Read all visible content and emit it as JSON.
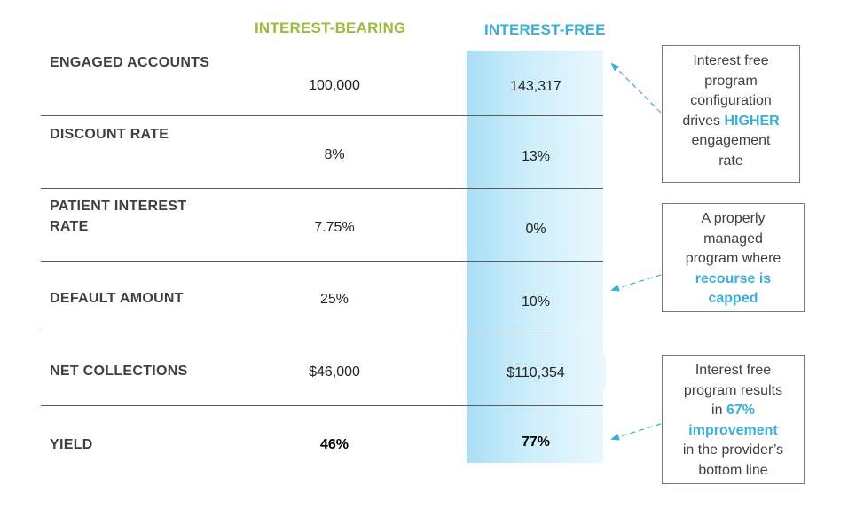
{
  "headers": {
    "interest_bearing": "INTEREST-BEARING",
    "interest_free": "INTEREST-FREE"
  },
  "rows": [
    {
      "label_l1": "ENGAGED ACCOUNTS",
      "label_l2": "",
      "interest_bearing": "100,000",
      "interest_free": "143,317"
    },
    {
      "label_l1": "DISCOUNT RATE",
      "label_l2": "",
      "interest_bearing": "8%",
      "interest_free": "13%"
    },
    {
      "label_l1": "PATIENT INTEREST",
      "label_l2": "RATE",
      "interest_bearing": "7.75%",
      "interest_free": "0%"
    },
    {
      "label_l1": "DEFAULT AMOUNT",
      "label_l2": "",
      "interest_bearing": "25%",
      "interest_free": "10%"
    },
    {
      "label_l1": "NET COLLECTIONS",
      "label_l2": "",
      "interest_bearing": "$46,000",
      "interest_free": "$110,354"
    },
    {
      "label_l1": "YIELD",
      "label_l2": "",
      "interest_bearing": "46%",
      "interest_free": "77%"
    }
  ],
  "notes": {
    "n1": {
      "l1": "Interest free",
      "l2": "program",
      "l3": "configuration",
      "l4a": "drives ",
      "l4b": "HIGHER",
      "l5": "engagement",
      "l6": "rate"
    },
    "n2": {
      "l1": "A properly",
      "l2": "managed",
      "l3": "program where",
      "l4": "recourse is",
      "l5": "capped"
    },
    "n3": {
      "l1": "Interest free",
      "l2": "program results",
      "l3a": "in ",
      "l3b": "67%",
      "l4": "improvement",
      "l5": "in the provider’s",
      "l6": "bottom line"
    }
  },
  "colors": {
    "interest_bearing_header": "#9BBB3A",
    "interest_free_header": "#3AAFDA",
    "highlight": "#3AAFDA",
    "arrow": "#3AAFDA"
  }
}
